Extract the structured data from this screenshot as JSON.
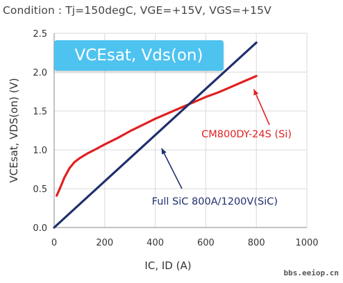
{
  "header": {
    "condition": "Condition : Tj=150degC, VGE=+15V, VGS=+15V"
  },
  "badge": {
    "label": "VCEsat, Vds(on)",
    "color": "#4ec3f0"
  },
  "watermark": "bbs.eeiop.cn",
  "colors": {
    "si": "#e02020",
    "sic": "#1f2f6e",
    "grid": "#d9d9d9",
    "axis": "#888888"
  },
  "chart_data": {
    "type": "line",
    "xlabel": "IC, ID (A)",
    "ylabel": "VCEsat, VDS(on) (V)",
    "xlim": [
      0,
      1000
    ],
    "ylim": [
      0,
      2.5
    ],
    "xticks": [
      0,
      200,
      400,
      600,
      800,
      1000
    ],
    "xtick_labels": [
      "0",
      "200",
      "400",
      "600",
      "800",
      "1000"
    ],
    "yticks": [
      0,
      0.5,
      1.0,
      1.5,
      2.0,
      2.5
    ],
    "ytick_labels": [
      "0.0",
      "0.5",
      "1.0",
      "1.5",
      "2.0",
      "2.5"
    ],
    "grid": true,
    "series": [
      {
        "name": "CM800DY-24S (Si)",
        "color": "#e02020",
        "x": [
          10,
          25,
          40,
          60,
          80,
          100,
          130,
          160,
          200,
          250,
          300,
          350,
          400,
          450,
          500,
          550,
          600,
          650,
          700,
          750,
          800
        ],
        "y": [
          0.41,
          0.52,
          0.64,
          0.76,
          0.84,
          0.89,
          0.95,
          1.0,
          1.07,
          1.15,
          1.24,
          1.32,
          1.4,
          1.47,
          1.54,
          1.61,
          1.68,
          1.74,
          1.81,
          1.88,
          1.95
        ]
      },
      {
        "name": "Full SiC 800A/1200V(SiC)",
        "color": "#1f2f6e",
        "x": [
          0,
          800
        ],
        "y": [
          0.0,
          2.38
        ]
      }
    ],
    "annotations": [
      {
        "text": "CM800DY-24S (Si)",
        "series": 0,
        "arrow_to": [
          790,
          1.78
        ]
      },
      {
        "text": "Full SiC 800A/1200V(SiC)",
        "series": 1,
        "arrow_to": [
          425,
          1.02
        ]
      }
    ]
  }
}
